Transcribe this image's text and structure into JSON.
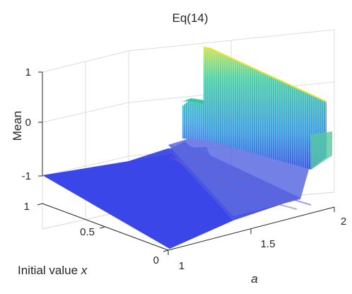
{
  "chart_data": {
    "type": "surface",
    "title": "Eq(14)",
    "xlabel": "a",
    "ylabel_prefix": "Initial value ",
    "ylabel_var": "x",
    "zlabel": "Mean",
    "xlim": [
      1,
      2
    ],
    "ylim": [
      0,
      1
    ],
    "zlim": [
      -1,
      1
    ],
    "x_ticks": [
      "1",
      "1.5",
      "2"
    ],
    "y_ticks": [
      "0",
      "0.5",
      "1"
    ],
    "z_ticks": [
      "-1",
      "0",
      "1"
    ],
    "grid": true,
    "colormap": "parula",
    "regions": [
      {
        "a_from": 1.0,
        "a_to": 1.45,
        "mean": -1
      },
      {
        "a_from": 1.45,
        "a_to": 1.75,
        "mean_range": [
          -1,
          0.25
        ],
        "note": "oscillatory"
      },
      {
        "a_from": 1.75,
        "a_to": 2.0,
        "mean_range": [
          -0.6,
          1
        ],
        "note": "oscillatory"
      }
    ],
    "colors": {
      "low": "#3b3be0",
      "mid": "#3fa6e0",
      "high": "#e6e02a",
      "axis": "#262626",
      "grid": "#dcdcdc"
    }
  }
}
